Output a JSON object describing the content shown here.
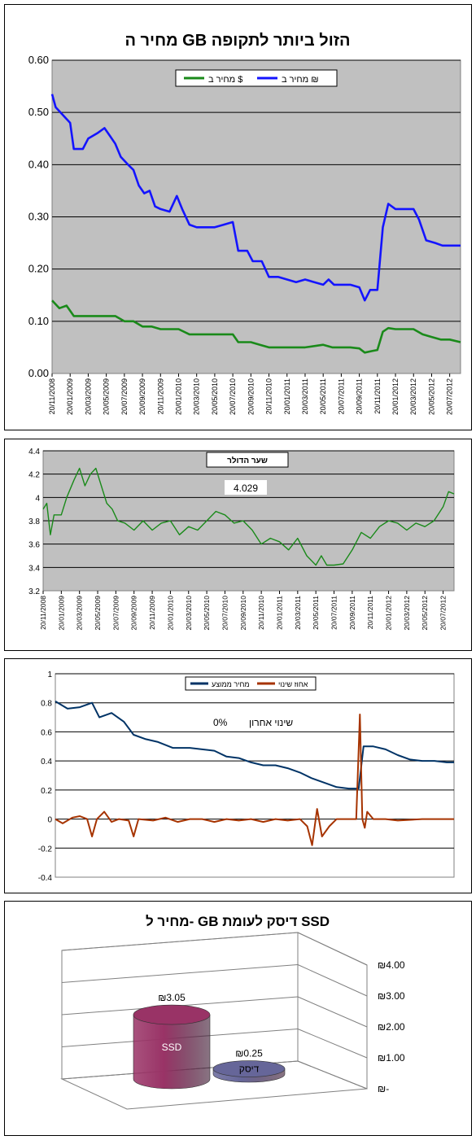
{
  "charts": [
    {
      "id": "gb-price",
      "title": "מחיר ה GB הזול ביותר לתקופה",
      "legend": [
        "מחיר ב $",
        "מחיר ב ₪"
      ],
      "colors": {
        "usd": "#1a8a1a",
        "ils": "#1414ff",
        "plot_bg": "#c0c0c0"
      }
    },
    {
      "id": "exchange-rate",
      "legend_title": "שער הדולר",
      "current_value": "4.029",
      "colors": {
        "line": "#1a8a1a",
        "plot_bg": "#c0c0c0"
      }
    },
    {
      "id": "normalized",
      "legend": [
        "מחיר ממוצע",
        "אחוז שינוי"
      ],
      "last_change_label": "שינוי אחרון",
      "last_change_value": "0%",
      "colors": {
        "avg": "#003366",
        "change": "#a63300",
        "plot_bg": "#ffffff"
      }
    },
    {
      "id": "ssd-vs-disk",
      "title": "מחיר ל- GB דיסק לעומת SSD",
      "colors": {
        "ssd": "#993366",
        "disk": "#666699"
      }
    }
  ],
  "chart_data": [
    {
      "type": "line",
      "title": "מחיר ה GB הזול ביותר לתקופה",
      "ylim": [
        0,
        0.6
      ],
      "y_ticks": [
        "0.00",
        "0.10",
        "0.20",
        "0.30",
        "0.40",
        "0.50",
        "0.60"
      ],
      "x_ticks": [
        "20/11/2008",
        "20/01/2009",
        "20/03/2009",
        "20/05/2009",
        "20/07/2009",
        "20/09/2009",
        "20/11/2009",
        "20/01/2010",
        "20/03/2010",
        "20/05/2010",
        "20/07/2010",
        "20/09/2010",
        "20/11/2010",
        "20/01/2011",
        "20/03/2011",
        "20/05/2011",
        "20/07/2011",
        "20/09/2011",
        "20/11/2011",
        "20/01/2012",
        "20/03/2012",
        "20/05/2012",
        "20/07/2012"
      ],
      "grid": true,
      "legend_position": "top",
      "series": [
        {
          "name": "מחיר ב ₪",
          "color": "#1414ff",
          "points": [
            [
              0,
              0.535
            ],
            [
              0.2,
              0.51
            ],
            [
              1.0,
              0.48
            ],
            [
              1.2,
              0.43
            ],
            [
              1.7,
              0.43
            ],
            [
              2.0,
              0.45
            ],
            [
              2.5,
              0.46
            ],
            [
              2.9,
              0.47
            ],
            [
              3.2,
              0.455
            ],
            [
              3.5,
              0.44
            ],
            [
              3.8,
              0.415
            ],
            [
              4.2,
              0.4
            ],
            [
              4.5,
              0.39
            ],
            [
              4.8,
              0.36
            ],
            [
              5.1,
              0.345
            ],
            [
              5.4,
              0.35
            ],
            [
              5.7,
              0.32
            ],
            [
              6.0,
              0.315
            ],
            [
              6.5,
              0.31
            ],
            [
              6.9,
              0.34
            ],
            [
              7.2,
              0.315
            ],
            [
              7.6,
              0.285
            ],
            [
              8.0,
              0.28
            ],
            [
              8.5,
              0.28
            ],
            [
              9.0,
              0.28
            ],
            [
              9.5,
              0.285
            ],
            [
              10.0,
              0.29
            ],
            [
              10.3,
              0.235
            ],
            [
              10.8,
              0.235
            ],
            [
              11.1,
              0.215
            ],
            [
              11.6,
              0.215
            ],
            [
              12.0,
              0.185
            ],
            [
              12.5,
              0.185
            ],
            [
              13.0,
              0.18
            ],
            [
              13.5,
              0.175
            ],
            [
              14.0,
              0.18
            ],
            [
              14.5,
              0.175
            ],
            [
              15.0,
              0.17
            ],
            [
              15.3,
              0.18
            ],
            [
              15.6,
              0.17
            ],
            [
              16.0,
              0.17
            ],
            [
              16.5,
              0.17
            ],
            [
              17.0,
              0.165
            ],
            [
              17.3,
              0.14
            ],
            [
              17.6,
              0.16
            ],
            [
              18.0,
              0.16
            ],
            [
              18.3,
              0.28
            ],
            [
              18.6,
              0.325
            ],
            [
              19.0,
              0.315
            ],
            [
              19.5,
              0.315
            ],
            [
              20.0,
              0.315
            ],
            [
              20.3,
              0.295
            ],
            [
              20.7,
              0.255
            ],
            [
              21.2,
              0.25
            ],
            [
              21.6,
              0.245
            ],
            [
              22.0,
              0.245
            ],
            [
              22.6,
              0.245
            ]
          ]
        },
        {
          "name": "מחיר ב $",
          "color": "#1a8a1a",
          "points": [
            [
              0,
              0.14
            ],
            [
              0.4,
              0.125
            ],
            [
              0.8,
              0.13
            ],
            [
              1.2,
              0.11
            ],
            [
              1.8,
              0.11
            ],
            [
              2.5,
              0.11
            ],
            [
              3.0,
              0.11
            ],
            [
              3.5,
              0.11
            ],
            [
              4.0,
              0.1
            ],
            [
              4.5,
              0.1
            ],
            [
              5.0,
              0.09
            ],
            [
              5.5,
              0.09
            ],
            [
              6.0,
              0.085
            ],
            [
              7.0,
              0.085
            ],
            [
              7.6,
              0.075
            ],
            [
              8.5,
              0.075
            ],
            [
              9.5,
              0.075
            ],
            [
              10.0,
              0.075
            ],
            [
              10.3,
              0.06
            ],
            [
              11.0,
              0.06
            ],
            [
              11.5,
              0.055
            ],
            [
              12.0,
              0.05
            ],
            [
              13.0,
              0.05
            ],
            [
              14.0,
              0.05
            ],
            [
              15.0,
              0.055
            ],
            [
              15.5,
              0.05
            ],
            [
              16.5,
              0.05
            ],
            [
              17.0,
              0.048
            ],
            [
              17.3,
              0.04
            ],
            [
              17.7,
              0.043
            ],
            [
              18.0,
              0.045
            ],
            [
              18.3,
              0.08
            ],
            [
              18.6,
              0.087
            ],
            [
              19.0,
              0.085
            ],
            [
              20.0,
              0.085
            ],
            [
              20.5,
              0.075
            ],
            [
              21.0,
              0.07
            ],
            [
              21.5,
              0.065
            ],
            [
              22.0,
              0.065
            ],
            [
              22.6,
              0.06
            ]
          ]
        }
      ]
    },
    {
      "type": "line",
      "title": "",
      "ylim": [
        3.2,
        4.4
      ],
      "y_ticks": [
        "3.2",
        "3.4",
        "3.6",
        "3.8",
        "4",
        "4.2",
        "4.4"
      ],
      "x_ticks": [
        "20/11/2008",
        "20/01/2009",
        "20/03/2009",
        "20/05/2009",
        "20/07/2009",
        "20/09/2009",
        "20/11/2009",
        "20/01/2010",
        "20/03/2010",
        "20/05/2010",
        "20/07/2010",
        "20/09/2010",
        "20/11/2010",
        "20/01/2011",
        "20/03/2011",
        "20/05/2011",
        "20/07/2011",
        "20/09/2011",
        "20/11/2011",
        "20/01/2012",
        "20/03/2012",
        "20/05/2012",
        "20/07/2012"
      ],
      "grid": true,
      "series": [
        {
          "name": "שער הדולר",
          "color": "#1a8a1a",
          "points": [
            [
              0,
              3.9
            ],
            [
              0.2,
              3.95
            ],
            [
              0.4,
              3.68
            ],
            [
              0.6,
              3.85
            ],
            [
              1.0,
              3.85
            ],
            [
              1.3,
              4.0
            ],
            [
              1.7,
              4.15
            ],
            [
              2.0,
              4.25
            ],
            [
              2.3,
              4.1
            ],
            [
              2.6,
              4.2
            ],
            [
              2.9,
              4.25
            ],
            [
              3.2,
              4.1
            ],
            [
              3.5,
              3.95
            ],
            [
              3.8,
              3.9
            ],
            [
              4.1,
              3.8
            ],
            [
              4.5,
              3.78
            ],
            [
              5.0,
              3.72
            ],
            [
              5.5,
              3.8
            ],
            [
              6.0,
              3.72
            ],
            [
              6.5,
              3.78
            ],
            [
              7.0,
              3.8
            ],
            [
              7.5,
              3.68
            ],
            [
              8.0,
              3.75
            ],
            [
              8.5,
              3.72
            ],
            [
              9.0,
              3.8
            ],
            [
              9.5,
              3.88
            ],
            [
              10.0,
              3.85
            ],
            [
              10.5,
              3.78
            ],
            [
              11.0,
              3.8
            ],
            [
              11.5,
              3.72
            ],
            [
              12.0,
              3.6
            ],
            [
              12.5,
              3.65
            ],
            [
              13.0,
              3.62
            ],
            [
              13.5,
              3.55
            ],
            [
              14.0,
              3.65
            ],
            [
              14.5,
              3.5
            ],
            [
              15.0,
              3.42
            ],
            [
              15.3,
              3.5
            ],
            [
              15.6,
              3.42
            ],
            [
              16.0,
              3.42
            ],
            [
              16.5,
              3.43
            ],
            [
              17.0,
              3.55
            ],
            [
              17.5,
              3.7
            ],
            [
              18.0,
              3.65
            ],
            [
              18.5,
              3.75
            ],
            [
              19.0,
              3.8
            ],
            [
              19.5,
              3.78
            ],
            [
              20.0,
              3.72
            ],
            [
              20.5,
              3.78
            ],
            [
              21.0,
              3.75
            ],
            [
              21.5,
              3.8
            ],
            [
              22.0,
              3.92
            ],
            [
              22.3,
              4.05
            ],
            [
              22.6,
              4.03
            ]
          ]
        }
      ]
    },
    {
      "type": "line",
      "title": "",
      "ylim": [
        -0.4,
        1
      ],
      "y_ticks": [
        "-0.4",
        "-0.2",
        "0",
        "0.2",
        "0.4",
        "0.6",
        "0.8",
        "1"
      ],
      "grid": true,
      "series": [
        {
          "name": "מחיר ממוצע",
          "color": "#003366",
          "points": [
            [
              0,
              0.81
            ],
            [
              0.5,
              0.76
            ],
            [
              1.0,
              0.77
            ],
            [
              1.5,
              0.8
            ],
            [
              1.8,
              0.7
            ],
            [
              2.3,
              0.73
            ],
            [
              2.8,
              0.67
            ],
            [
              3.2,
              0.58
            ],
            [
              3.7,
              0.55
            ],
            [
              4.2,
              0.53
            ],
            [
              4.8,
              0.49
            ],
            [
              5.5,
              0.49
            ],
            [
              6.0,
              0.48
            ],
            [
              6.5,
              0.47
            ],
            [
              7.0,
              0.43
            ],
            [
              7.5,
              0.42
            ],
            [
              8.0,
              0.39
            ],
            [
              8.5,
              0.37
            ],
            [
              9.0,
              0.37
            ],
            [
              9.5,
              0.35
            ],
            [
              10.0,
              0.32
            ],
            [
              10.5,
              0.28
            ],
            [
              11.0,
              0.25
            ],
            [
              11.5,
              0.22
            ],
            [
              12.0,
              0.21
            ],
            [
              12.4,
              0.21
            ],
            [
              12.6,
              0.5
            ],
            [
              13.0,
              0.5
            ],
            [
              13.5,
              0.48
            ],
            [
              14.0,
              0.44
            ],
            [
              14.5,
              0.41
            ],
            [
              15.0,
              0.4
            ],
            [
              15.5,
              0.4
            ],
            [
              16.0,
              0.39
            ],
            [
              16.3,
              0.39
            ]
          ]
        },
        {
          "name": "אחוז שינוי",
          "color": "#a63300",
          "points": [
            [
              0,
              0
            ],
            [
              0.3,
              -0.03
            ],
            [
              0.7,
              0.01
            ],
            [
              1.0,
              0.02
            ],
            [
              1.3,
              0.0
            ],
            [
              1.5,
              -0.12
            ],
            [
              1.7,
              0.0
            ],
            [
              2.0,
              0.05
            ],
            [
              2.3,
              -0.02
            ],
            [
              2.6,
              0.0
            ],
            [
              3.0,
              -0.01
            ],
            [
              3.2,
              -0.12
            ],
            [
              3.4,
              0.0
            ],
            [
              4.0,
              -0.01
            ],
            [
              4.5,
              0.01
            ],
            [
              5.0,
              -0.02
            ],
            [
              5.5,
              0.0
            ],
            [
              6.0,
              0.0
            ],
            [
              6.5,
              -0.02
            ],
            [
              7.0,
              0.0
            ],
            [
              7.5,
              -0.01
            ],
            [
              8.0,
              0.0
            ],
            [
              8.5,
              -0.02
            ],
            [
              9.0,
              0.0
            ],
            [
              9.5,
              -0.01
            ],
            [
              10.0,
              0.0
            ],
            [
              10.3,
              -0.05
            ],
            [
              10.5,
              -0.18
            ],
            [
              10.7,
              0.07
            ],
            [
              10.9,
              -0.12
            ],
            [
              11.2,
              -0.05
            ],
            [
              11.5,
              0.0
            ],
            [
              12.0,
              0.0
            ],
            [
              12.3,
              0.0
            ],
            [
              12.45,
              0.72
            ],
            [
              12.55,
              0.0
            ],
            [
              12.65,
              -0.06
            ],
            [
              12.75,
              0.05
            ],
            [
              13.0,
              0.0
            ],
            [
              13.5,
              0.0
            ],
            [
              14.0,
              -0.01
            ],
            [
              15.0,
              0.0
            ],
            [
              16.0,
              0.0
            ],
            [
              16.3,
              0.0
            ]
          ]
        }
      ]
    },
    {
      "type": "bar",
      "title": "מחיר ל- GB דיסק לעומת SSD",
      "categories": [
        "SSD",
        "דיסק"
      ],
      "values": [
        3.05,
        0.25
      ],
      "value_labels": [
        "₪3.05",
        "₪0.25"
      ],
      "ylim": [
        0,
        4
      ],
      "y_ticks": [
        "₪-",
        "₪1.00",
        "₪2.00",
        "₪3.00",
        "₪4.00"
      ]
    }
  ]
}
